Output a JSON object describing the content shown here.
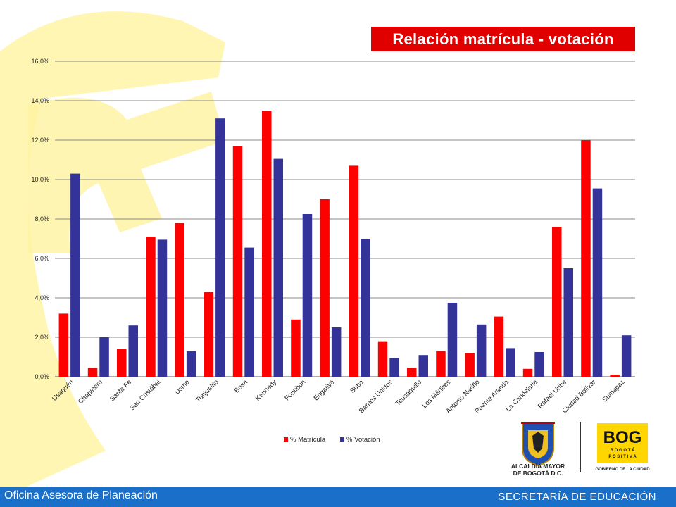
{
  "header": {
    "title": "Relación matrícula - votación"
  },
  "footer": {
    "left": "Oficina Asesora de Planeación",
    "right": "SECRETARÍA DE EDUCACIÓN"
  },
  "logos": {
    "alcaldia_line1": "ALCALDÍA MAYOR",
    "alcaldia_line2": "DE BOGOTÁ D.C.",
    "bog_word": "BOG",
    "bog_sub1": "B O G O T Á",
    "bog_sub2": "P O S I T I V A",
    "bog_sub3": "GOBIERNO DE LA CIUDAD"
  },
  "colors": {
    "matricula": "#ff0000",
    "votacion": "#333399",
    "title_bg": "#e00000",
    "footer_bg": "#1a6fc9",
    "deco": "#fff6b3"
  },
  "chart_data": {
    "type": "bar",
    "title": "",
    "xlabel": "",
    "ylabel": "",
    "ylim": [
      0,
      16
    ],
    "yticks": [
      0,
      2,
      4,
      6,
      8,
      10,
      12,
      14,
      16
    ],
    "ytick_labels": [
      "0,0%",
      "2,0%",
      "4,0%",
      "6,0%",
      "8,0%",
      "10,0%",
      "12,0%",
      "14,0%",
      "16,0%"
    ],
    "grid": true,
    "legend_position": "bottom",
    "categories": [
      "Usaquén",
      "Chapinero",
      "Santa Fe",
      "San Cristóbal",
      "Usme",
      "Tunjuelito",
      "Bosa",
      "Kennedy",
      "Fontibón",
      "Engativá",
      "Suba",
      "Barrios Unidos",
      "Teusaquillo",
      "Los Mártires",
      "Antonio Nariño",
      "Puente Aranda",
      "La Candelaria",
      "Rafael Uribe",
      "Ciudad Bolívar",
      "Sumapaz"
    ],
    "series": [
      {
        "name": "% Matrícula",
        "color": "#ff0000",
        "values": [
          3.2,
          0.45,
          1.4,
          7.1,
          7.8,
          4.3,
          11.7,
          13.5,
          2.9,
          9.0,
          10.7,
          1.8,
          0.45,
          1.3,
          1.2,
          3.05,
          0.4,
          7.6,
          12.0,
          0.1
        ]
      },
      {
        "name": "% Votación",
        "color": "#333399",
        "values": [
          10.3,
          2.0,
          2.6,
          6.95,
          1.3,
          13.1,
          6.55,
          11.05,
          8.25,
          2.5,
          7.0,
          0.95,
          1.1,
          3.75,
          2.65,
          1.45,
          1.25,
          5.5,
          9.55,
          2.1
        ]
      }
    ]
  }
}
